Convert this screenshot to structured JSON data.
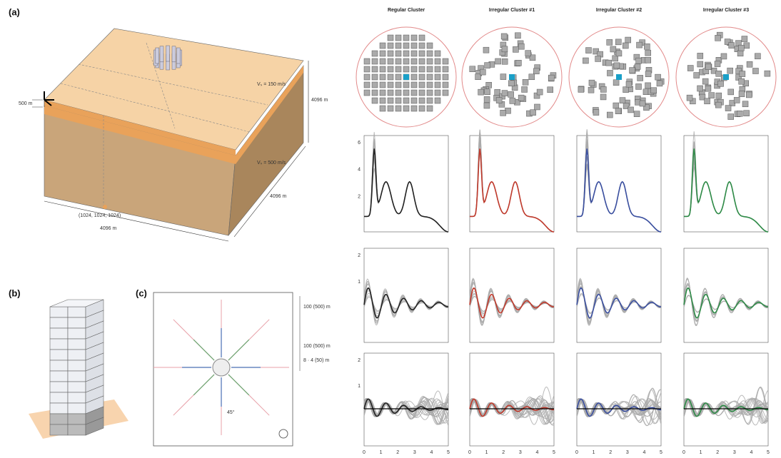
{
  "panel_a": {
    "label": "(a)",
    "vs_top": "Vₛ = 150 m/s",
    "vs_bottom": "Vₛ = 500 m/s",
    "layer": "500 m",
    "height": "4096 m",
    "width_x": "4096 m",
    "width_y": "4096 m",
    "source": "(1024, 1024, 1024)"
  },
  "panel_b": {
    "label": "(b)"
  },
  "panel_c": {
    "label": "(c)",
    "angle": "45°",
    "dims": [
      "100 (500) m",
      "100 (500) m",
      "8 · 4 (50) m"
    ]
  },
  "clusters": [
    "Regular Cluster",
    "Irregular Cluster #1",
    "Irregular Cluster #2",
    "Irregular Cluster #3"
  ],
  "rows": [
    {
      "yticks": [
        "6",
        "4",
        "2"
      ]
    },
    {
      "yticks": [
        "2",
        "1"
      ]
    },
    {
      "yticks": [
        "2",
        "1"
      ]
    }
  ],
  "xticks": [
    "0",
    "1",
    "2",
    "3",
    "4",
    "5"
  ]
}
